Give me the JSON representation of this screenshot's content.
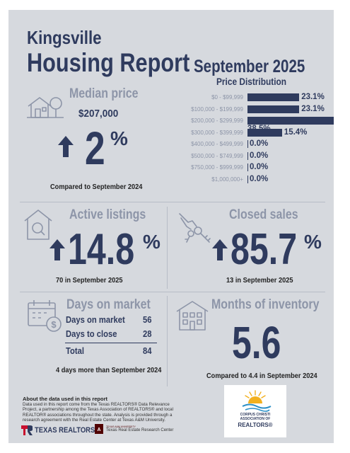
{
  "header": {
    "city": "Kingsville",
    "title": "Housing Report",
    "month": "September 2025"
  },
  "median_price": {
    "label": "Median price",
    "value": "$207,000",
    "change": "2",
    "pct_sign": "%",
    "note": "Compared to September 2024",
    "icon": "house-tree-icon"
  },
  "price_distribution": {
    "title": "Price Distribution",
    "rows": [
      {
        "range": "$0 - $99,999",
        "value": 23.1,
        "label": "23.1%"
      },
      {
        "range": "$100,000 - $199,999",
        "value": 23.1,
        "label": "23.1%"
      },
      {
        "range": "$200,000 - $299,999",
        "value": 38.5,
        "label": "38.5%"
      },
      {
        "range": "$300,000 - $399,999",
        "value": 15.4,
        "label": "15.4%"
      },
      {
        "range": "$400,000 - $499,999",
        "value": 0.0,
        "label": "0.0%"
      },
      {
        "range": "$500,000 - $749,999",
        "value": 0.0,
        "label": "0.0%"
      },
      {
        "range": "$750,000 - $999,999",
        "value": 0.0,
        "label": "0.0%"
      },
      {
        "range": "$1,000,000+",
        "value": 0.0,
        "label": "0.0%"
      }
    ]
  },
  "active_listings": {
    "label": "Active listings",
    "change": "14.8",
    "pct_sign": "%",
    "note": "70 in September 2025",
    "icon": "house-magnifier-icon"
  },
  "closed_sales": {
    "label": "Closed sales",
    "change": "85.7",
    "pct_sign": "%",
    "note": "13 in September 2025",
    "icon": "hand-keys-icon"
  },
  "days_on_market": {
    "label": "Days on market",
    "rows": [
      {
        "label": "Days on market",
        "value": "56"
      },
      {
        "label": "Days to close",
        "value": "28"
      }
    ],
    "total_label": "Total",
    "total_value": "84",
    "note": "4 days more than September 2024",
    "icon": "calendar-dollar-icon"
  },
  "months_inventory": {
    "label": "Months of inventory",
    "value": "5.6",
    "note": "Compared to 4.4 in September 2024",
    "icon": "building-icon"
  },
  "about": {
    "heading": "About the data used in this report",
    "text": "Data used in this report come from the Texas REALTORS® Data Relevance Project, a partnership among the Texas Association of REALTORS® and local REALTOR® associations throughout the state. Analysis is provided through a research agreement with the Real Estate Center at Texas A&M University."
  },
  "logos": {
    "texas_realtors": "TEXAS REALTORS",
    "research_center": "Texas Real Estate Research Center",
    "research_center_small": "TEXAS A&M UNIVERSITY",
    "association_line1": "CORPUS CHRISTI",
    "association_line2": "ASSOCIATION OF",
    "association_line3": "REALTORS®"
  },
  "colors": {
    "navy": "#2f3b5e",
    "muted": "#8d95a8",
    "background": "#d6d9de",
    "texas_red": "#c8102e",
    "aggie_maroon": "#500000"
  }
}
